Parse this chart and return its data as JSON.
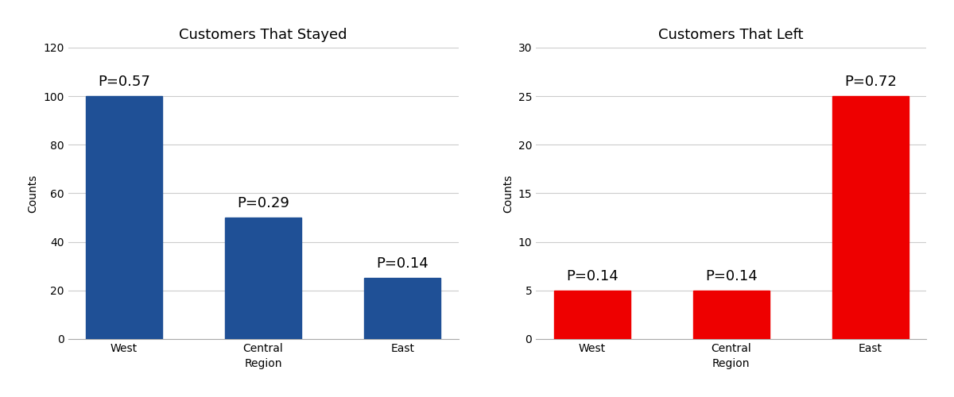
{
  "left_chart": {
    "title": "Customers That Stayed",
    "categories": [
      "West",
      "Central",
      "East"
    ],
    "values": [
      100,
      50,
      25
    ],
    "labels": [
      "P=0.57",
      "P=0.29",
      "P=0.14"
    ],
    "bar_color": "#1f5096",
    "xlabel": "Region",
    "ylabel": "Counts",
    "ylim": [
      0,
      120
    ],
    "yticks": [
      0,
      20,
      40,
      60,
      80,
      100,
      120
    ]
  },
  "right_chart": {
    "title": "Customers That Left",
    "categories": [
      "West",
      "Central",
      "East"
    ],
    "values": [
      5,
      5,
      25
    ],
    "labels": [
      "P=0.14",
      "P=0.14",
      "P=0.72"
    ],
    "bar_color": "#ee0000",
    "xlabel": "Region",
    "ylabel": "Counts",
    "ylim": [
      0,
      30
    ],
    "yticks": [
      0,
      5,
      10,
      15,
      20,
      25,
      30
    ]
  },
  "title_fontsize": 13,
  "label_fontsize": 10,
  "tick_fontsize": 10,
  "annotation_fontsize": 13,
  "background_color": "#ffffff",
  "grid_color": "#cccccc"
}
